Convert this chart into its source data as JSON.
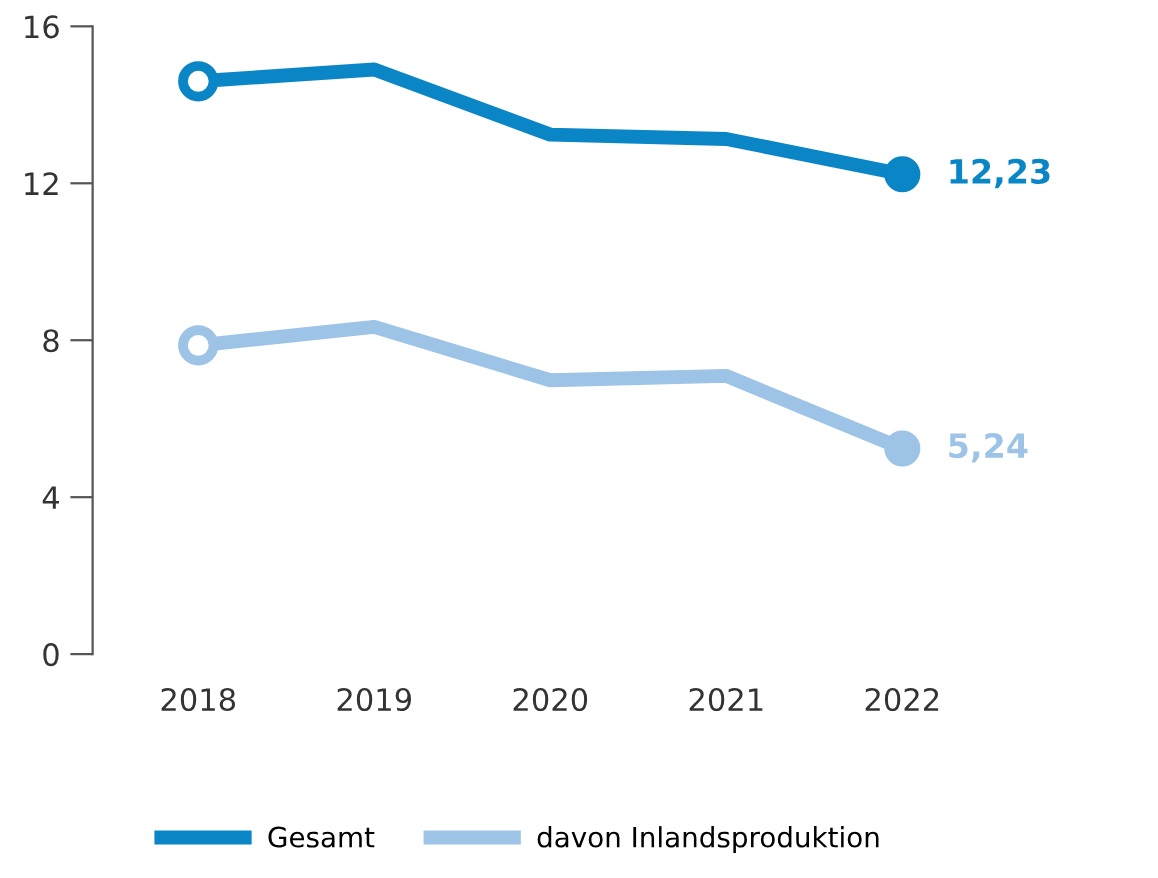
{
  "chart_data": {
    "type": "line",
    "categories": [
      "2018",
      "2019",
      "2020",
      "2021",
      "2022"
    ],
    "series": [
      {
        "name": "Gesamt",
        "color": "#0a86c6",
        "values": [
          14.6,
          14.9,
          13.24,
          13.13,
          12.23
        ],
        "value_labels": [
          null,
          null,
          null,
          null,
          "12,23"
        ]
      },
      {
        "name": "davon Inlandsproduktion",
        "color": "#9dc3e6",
        "values": [
          7.87,
          8.34,
          6.98,
          7.09,
          5.24
        ],
        "value_labels": [
          null,
          null,
          null,
          null,
          "5,24"
        ]
      }
    ],
    "ylim": [
      0,
      16
    ],
    "yticks": [
      0,
      4,
      8,
      12,
      16
    ],
    "grid": false,
    "legend": "bottom",
    "line_style": "solid"
  }
}
